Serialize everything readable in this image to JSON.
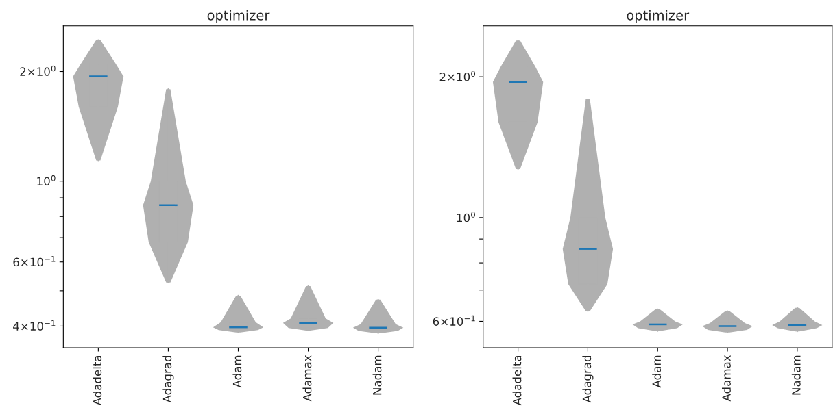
{
  "chart_data": [
    {
      "type": "box",
      "title": "optimizer",
      "categories": [
        "Adadelta",
        "Adagrad",
        "Adam",
        "Adamax",
        "Nadam"
      ],
      "log": "y",
      "grid": false,
      "ylim": [
        0.349,
        2.67
      ],
      "yticks": [
        {
          "value": 0.4,
          "label": "4×10$^{−1}$"
        },
        {
          "value": 0.5,
          "label": null
        },
        {
          "value": 0.6,
          "label": "6×10$^{−1}$"
        },
        {
          "value": 0.7,
          "label": null
        },
        {
          "value": 0.8,
          "label": null
        },
        {
          "value": 0.9,
          "label": null
        },
        {
          "value": 1,
          "label": "10$^{0}$"
        },
        {
          "value": 2,
          "label": "2×10$^{0}$"
        }
      ],
      "series": [
        {
          "color": "#b0b0b0",
          "boxes": [
            {
              "low": 1.14,
              "q1": 1.6,
              "median": 1.94,
              "q3": 2.1,
              "high": 2.44
            },
            {
              "low": 0.527,
              "q1": 0.68,
              "median": 0.859,
              "q3": 1.0,
              "high": 1.79
            },
            {
              "low": 0.384,
              "q1": 0.39,
              "median": 0.397,
              "q3": 0.41,
              "high": 0.485
            },
            {
              "low": 0.389,
              "q1": 0.395,
              "median": 0.408,
              "q3": 0.42,
              "high": 0.515
            },
            {
              "low": 0.382,
              "q1": 0.388,
              "median": 0.396,
              "q3": 0.405,
              "high": 0.473
            }
          ]
        }
      ]
    },
    {
      "type": "box",
      "title": "optimizer",
      "categories": [
        "Adadelta",
        "Adagrad",
        "Adam",
        "Adamax",
        "Nadam"
      ],
      "log": "y",
      "grid": false,
      "ylim": [
        0.527,
        2.57
      ],
      "yticks": [
        {
          "value": 0.6,
          "label": "6×10$^{−1}$"
        },
        {
          "value": 0.7,
          "label": null
        },
        {
          "value": 0.8,
          "label": null
        },
        {
          "value": 0.9,
          "label": null
        },
        {
          "value": 1,
          "label": "10$^{0}$"
        },
        {
          "value": 2,
          "label": "2×10$^{0}$"
        }
      ],
      "series": [
        {
          "color": "#b0b0b0",
          "boxes": [
            {
              "low": 1.27,
              "q1": 1.6,
              "median": 1.95,
              "q3": 2.1,
              "high": 2.39
            },
            {
              "low": 0.631,
              "q1": 0.72,
              "median": 0.857,
              "q3": 1.0,
              "high": 1.79
            },
            {
              "low": 0.572,
              "q1": 0.58,
              "median": 0.591,
              "q3": 0.6,
              "high": 0.637
            },
            {
              "low": 0.568,
              "q1": 0.575,
              "median": 0.586,
              "q3": 0.595,
              "high": 0.631
            },
            {
              "low": 0.571,
              "q1": 0.58,
              "median": 0.589,
              "q3": 0.6,
              "high": 0.641
            }
          ]
        }
      ]
    }
  ]
}
